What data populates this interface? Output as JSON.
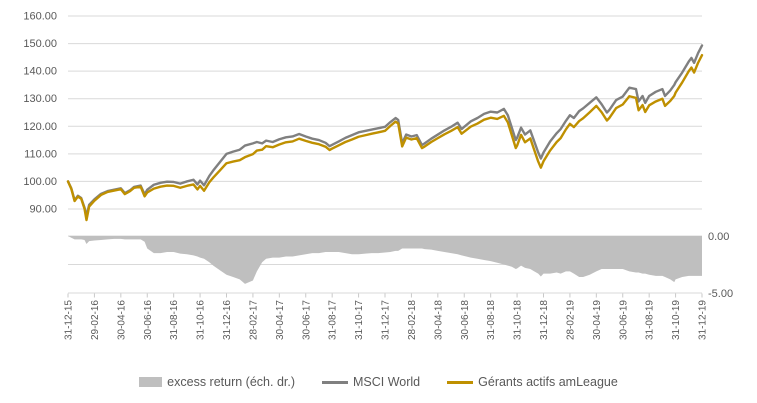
{
  "chart": {
    "colors": {
      "background": "#FFFFFF",
      "gridline": "#D9D9D9",
      "tick": "#C9C9C9",
      "axis_text": "#595959",
      "area": "#BFBFBF",
      "msci": "#808080",
      "gerants": "#BF9000"
    },
    "left_axis": {
      "labels": [
        "160.00",
        "150.00",
        "140.00",
        "130.00",
        "120.00",
        "110.00",
        "100.00",
        "90.00"
      ],
      "values": [
        160,
        150,
        140,
        130,
        120,
        110,
        100,
        90
      ]
    },
    "right_axis": {
      "labels": [
        "0.00",
        "-5.00"
      ],
      "values": [
        0,
        -5
      ],
      "gridline_values": [
        0,
        -2.5,
        -5
      ]
    },
    "x_axis": {
      "labels": [
        "31-12-15",
        "29-02-16",
        "30-04-16",
        "30-06-16",
        "31-08-16",
        "31-10-16",
        "31-12-16",
        "28-02-17",
        "30-04-17",
        "30-06-17",
        "31-08-17",
        "31-10-17",
        "31-12-17",
        "28-02-18",
        "30-04-18",
        "30-06-18",
        "31-08-18",
        "31-10-18",
        "31-12-18",
        "28-02-19",
        "30-04-19",
        "30-06-19",
        "31-08-19",
        "31-10-19",
        "31-12-19"
      ]
    },
    "legend": [
      {
        "label": "excess return (éch. dr.)",
        "swatch": "area",
        "color": "#BFBFBF"
      },
      {
        "label": "MSCI World",
        "swatch": "line",
        "color": "#808080"
      },
      {
        "label": "Gérants actifs amLeague",
        "swatch": "line",
        "color": "#BF9000"
      }
    ]
  },
  "chart_data": {
    "type": "line+area",
    "title": "",
    "x_unit": "months since 31-12-15",
    "x_max": 48,
    "left_ylim": [
      90,
      160
    ],
    "right_ylim": [
      -5,
      0
    ],
    "grid": true,
    "legend_position": "bottom-center",
    "x_tick_labels": [
      "31-12-15",
      "29-02-16",
      "30-04-16",
      "30-06-16",
      "31-08-16",
      "31-10-16",
      "31-12-16",
      "28-02-17",
      "30-04-17",
      "30-06-17",
      "31-08-17",
      "31-10-17",
      "31-12-17",
      "28-02-18",
      "30-04-18",
      "30-06-18",
      "31-08-18",
      "31-10-18",
      "31-12-18",
      "28-02-19",
      "30-04-19",
      "30-06-19",
      "31-08-19",
      "31-10-19",
      "31-12-19"
    ],
    "x": [
      0,
      0.25,
      0.5,
      0.75,
      1,
      1.25,
      1.4,
      1.6,
      2,
      2.5,
      3,
      3.5,
      4,
      4.3,
      4.7,
      5,
      5.5,
      5.8,
      6,
      6.5,
      7,
      7.5,
      8,
      8.5,
      9,
      9.5,
      9.8,
      10,
      10.3,
      10.7,
      11,
      11.5,
      12,
      12.5,
      13,
      13.4,
      14,
      14.3,
      14.7,
      15,
      15.5,
      16,
      16.5,
      17,
      17.5,
      18,
      18.5,
      19,
      19.5,
      19.8,
      20,
      20.5,
      21,
      21.5,
      22,
      22.5,
      23,
      23.5,
      24,
      24.4,
      24.8,
      25,
      25.3,
      25.6,
      26,
      26.4,
      26.8,
      27,
      27.5,
      28,
      28.5,
      29,
      29.5,
      29.8,
      30,
      30.5,
      31,
      31.5,
      32,
      32.5,
      33,
      33.3,
      33.6,
      33.9,
      34,
      34.3,
      34.6,
      35,
      35.3,
      35.6,
      35.8,
      36,
      36.5,
      37,
      37.3,
      37.7,
      38,
      38.3,
      38.7,
      39,
      39.5,
      40,
      40.4,
      40.8,
      41,
      41.5,
      42,
      42.5,
      43,
      43.2,
      43.5,
      43.7,
      44,
      44.5,
      45,
      45.2,
      45.6,
      45.9,
      46,
      46.5,
      47,
      47.2,
      47.4,
      47.7,
      48
    ],
    "series": [
      {
        "name": "MSCI World",
        "type": "line",
        "axis": "left",
        "values": [
          100,
          97.5,
          93.2,
          94.8,
          94,
          90.5,
          87.5,
          91.5,
          93.5,
          95.5,
          96.5,
          97,
          97.5,
          95.8,
          96.8,
          98,
          98.5,
          95.3,
          97,
          98.8,
          99.5,
          99.9,
          99.8,
          99.2,
          100,
          100.6,
          98.9,
          100.3,
          98.6,
          102,
          104,
          107,
          110,
          110.8,
          111.5,
          113,
          113.8,
          114.3,
          113.8,
          114.8,
          114.3,
          115.3,
          116,
          116.3,
          117.2,
          116.3,
          115.5,
          115,
          114,
          112.8,
          113.3,
          114.5,
          115.8,
          116.8,
          117.8,
          118.3,
          118.8,
          119.3,
          119.8,
          121.5,
          123,
          122.3,
          113.8,
          117,
          116.3,
          116.8,
          113.2,
          113.8,
          115.5,
          117,
          118.5,
          119.8,
          121.3,
          119,
          119.8,
          121.8,
          123,
          124.5,
          125.3,
          125,
          126.3,
          124,
          119.5,
          115,
          115.8,
          119.5,
          117,
          118.5,
          114.5,
          110.5,
          108.3,
          110.5,
          114.5,
          117.5,
          119,
          122,
          124,
          123,
          125.5,
          126.5,
          128.5,
          130.5,
          128,
          125,
          126,
          129.5,
          130.8,
          134,
          133.5,
          129,
          131,
          128.5,
          131,
          132.5,
          133.5,
          131,
          133,
          135,
          136,
          139.5,
          143.5,
          144.8,
          143,
          146.5,
          149.3
        ]
      },
      {
        "name": "Gérants actifs amLeague",
        "type": "line",
        "axis": "left",
        "values": [
          100,
          97.3,
          92.9,
          94.5,
          93.7,
          90.1,
          86,
          90.9,
          93,
          95.1,
          96.2,
          96.7,
          97.2,
          95.4,
          96.5,
          97.7,
          98.1,
          94.6,
          96,
          97.4,
          98.1,
          98.5,
          98.4,
          97.7,
          98.4,
          98.9,
          97.1,
          98.4,
          96.6,
          99.7,
          101.4,
          104,
          106.6,
          107.2,
          107.7,
          108.8,
          109.9,
          111.2,
          111.5,
          112.8,
          112.4,
          113.4,
          114.2,
          114.5,
          115.5,
          114.7,
          114,
          113.5,
          112.6,
          111.4,
          111.9,
          113.1,
          114.3,
          115.2,
          116.2,
          116.75,
          117.3,
          117.8,
          118.35,
          120.1,
          121.7,
          121,
          112.7,
          115.9,
          115.2,
          115.7,
          112.1,
          112.65,
          114.3,
          115.7,
          117.1,
          118.3,
          119.7,
          117.3,
          118.05,
          119.9,
          121,
          122.4,
          123.1,
          122.65,
          123.8,
          121.4,
          116.8,
          112.1,
          112.95,
          116.9,
          114.2,
          115.6,
          111.4,
          107.2,
          105,
          107.3,
          111.2,
          114.3,
          115.7,
          118.9,
          120.9,
          119.7,
          121.9,
          122.9,
          125.1,
          127.4,
          125.1,
          122.1,
          123.1,
          126.6,
          127.9,
          130.9,
          130.3,
          125.8,
          127.7,
          125.2,
          127.6,
          129,
          130,
          127.4,
          129.2,
          131,
          132.2,
          135.9,
          140,
          141.3,
          139.5,
          143,
          145.8
        ]
      },
      {
        "name": "excess return (éch. dr.)",
        "type": "area",
        "axis": "right",
        "values": [
          0,
          -0.15,
          -0.3,
          -0.3,
          -0.3,
          -0.35,
          -0.7,
          -0.45,
          -0.4,
          -0.35,
          -0.3,
          -0.25,
          -0.25,
          -0.3,
          -0.3,
          -0.3,
          -0.3,
          -0.5,
          -1.1,
          -1.5,
          -1.5,
          -1.4,
          -1.4,
          -1.55,
          -1.6,
          -1.7,
          -1.8,
          -1.9,
          -2,
          -2.3,
          -2.6,
          -3,
          -3.4,
          -3.6,
          -3.8,
          -4.2,
          -3.9,
          -3.1,
          -2.3,
          -2,
          -1.9,
          -1.9,
          -1.8,
          -1.8,
          -1.7,
          -1.6,
          -1.5,
          -1.5,
          -1.4,
          -1.4,
          -1.4,
          -1.4,
          -1.5,
          -1.6,
          -1.6,
          -1.55,
          -1.5,
          -1.5,
          -1.45,
          -1.4,
          -1.3,
          -1.3,
          -1.1,
          -1.1,
          -1.1,
          -1.1,
          -1.1,
          -1.15,
          -1.2,
          -1.3,
          -1.4,
          -1.5,
          -1.6,
          -1.7,
          -1.75,
          -1.9,
          -2,
          -2.1,
          -2.2,
          -2.35,
          -2.5,
          -2.6,
          -2.7,
          -2.9,
          -2.85,
          -2.6,
          -2.8,
          -2.9,
          -3.1,
          -3.3,
          -3.55,
          -3.3,
          -3.3,
          -3.2,
          -3.3,
          -3.1,
          -3.1,
          -3.3,
          -3.6,
          -3.6,
          -3.4,
          -3.1,
          -2.9,
          -2.9,
          -2.9,
          -2.9,
          -2.9,
          -3.1,
          -3.2,
          -3.2,
          -3.3,
          -3.3,
          -3.4,
          -3.5,
          -3.5,
          -3.6,
          -3.8,
          -4.05,
          -3.8,
          -3.6,
          -3.5,
          -3.5,
          -3.5,
          -3.5,
          -3.5
        ]
      }
    ]
  }
}
